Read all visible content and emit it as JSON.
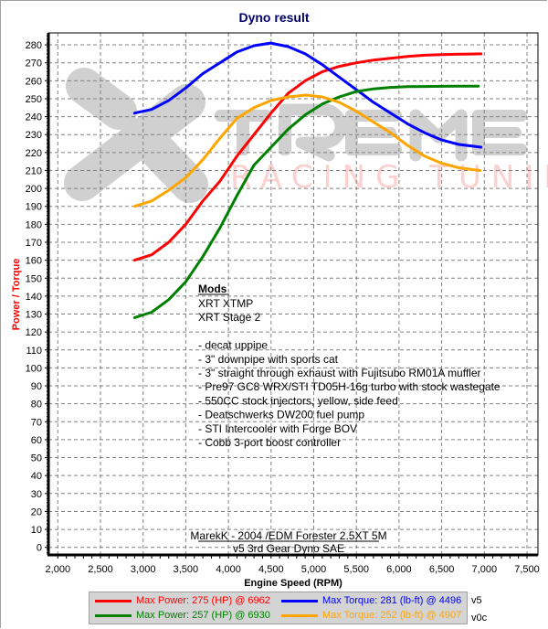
{
  "chart_data": {
    "type": "line",
    "title": "Dyno result",
    "xlabel": "Engine Speed (RPM)",
    "ylabel": "Power / Torque",
    "xlim": [
      1880,
      7620
    ],
    "ylim": [
      -5,
      290
    ],
    "x_ticks": [
      2000,
      2500,
      3000,
      3500,
      4000,
      4500,
      5000,
      5500,
      6000,
      6500,
      7000,
      7500
    ],
    "x_tick_labels": [
      "2,000",
      "2,500",
      "3,000",
      "3,500",
      "4,000",
      "4,500",
      "5,000",
      "5,500",
      "6,000",
      "6,500",
      "7,000",
      "7,500"
    ],
    "y_ticks": [
      0,
      10,
      20,
      30,
      40,
      50,
      60,
      70,
      80,
      90,
      100,
      110,
      120,
      130,
      140,
      150,
      160,
      170,
      180,
      190,
      200,
      210,
      220,
      230,
      240,
      250,
      260,
      270,
      280
    ],
    "grid": true,
    "legend_position": "bottom",
    "series": [
      {
        "name": "Max Power: 275 (HP) @ 6962",
        "run": "v5",
        "color": "#ff0000",
        "x": [
          2900,
          3100,
          3300,
          3500,
          3700,
          3900,
          4100,
          4300,
          4500,
          4700,
          4900,
          5100,
          5300,
          5500,
          5700,
          5900,
          6100,
          6300,
          6500,
          6700,
          6962
        ],
        "y": [
          160,
          163,
          170,
          180,
          193,
          204,
          218,
          230,
          242,
          253,
          260,
          265,
          268,
          270,
          271.5,
          272.5,
          273.5,
          274.2,
          274.6,
          274.8,
          275
        ]
      },
      {
        "name": "Max Torque: 281 (lb-ft) @ 4496",
        "run": "v5",
        "color": "#0000ff",
        "x": [
          2900,
          3100,
          3300,
          3500,
          3700,
          3900,
          4100,
          4300,
          4496,
          4700,
          4900,
          5100,
          5300,
          5500,
          5700,
          5900,
          6100,
          6300,
          6500,
          6700,
          6962
        ],
        "y": [
          242,
          244,
          249,
          256,
          264,
          270,
          276,
          279.5,
          281,
          279,
          275,
          269,
          262,
          255,
          248,
          242,
          236,
          231,
          227,
          224.5,
          223
        ]
      },
      {
        "name": "Max Power: 257 (HP) @ 6930",
        "run": "v0c",
        "color": "#008000",
        "x": [
          2900,
          3100,
          3300,
          3500,
          3700,
          3900,
          4100,
          4300,
          4500,
          4700,
          4900,
          5100,
          5300,
          5500,
          5700,
          5900,
          6100,
          6300,
          6500,
          6700,
          6930
        ],
        "y": [
          128,
          131,
          138,
          148,
          162,
          178,
          196,
          213,
          223,
          233,
          241,
          247,
          251,
          254,
          255.5,
          256.3,
          256.7,
          256.8,
          256.9,
          257,
          257
        ]
      },
      {
        "name": "Max Torque: 252 (lb-ft) @ 4907",
        "run": "v0c",
        "color": "#ffa500",
        "x": [
          2900,
          3100,
          3300,
          3500,
          3700,
          3900,
          4100,
          4300,
          4500,
          4700,
          4907,
          5100,
          5300,
          5500,
          5700,
          5900,
          6100,
          6300,
          6500,
          6700,
          6950
        ],
        "y": [
          190,
          193,
          199,
          206,
          216,
          228,
          239,
          245,
          249,
          251,
          252,
          251,
          248,
          243,
          237,
          231,
          224,
          218,
          214,
          211.5,
          210
        ]
      }
    ],
    "annotations": {
      "mods_heading": "Mods",
      "mods_lines": [
        "XRT XTMP",
        "XRT Stage 2",
        "",
        "- decat uppipe",
        "- 3\" downpipe with sports cat",
        "- 3\" straight through exhaust with Fujitsubo RM01A muffler",
        "- Pre97 GC8 WRX/STI TD05H-16g turbo with stock wastegate",
        "- 550CC stock injectors, yellow, side feed",
        "- Deatschwerks DW200 fuel pump",
        "- STI Intercooler with Forge BOV",
        "- Cobb 3-port boost controller"
      ],
      "caption_line1": "MarekK - 2004 /EDM Forester 2.5XT 5M",
      "caption_line2": "v5 3rd Gear Dyno SAE"
    },
    "watermark": {
      "word": "TREME",
      "subtitle": "RACING TUNING"
    }
  },
  "legend": {
    "items": [
      {
        "label": "Max Power: 275 (HP) @ 6962",
        "color": "#ff0000"
      },
      {
        "label": "Max Torque: 281 (lb-ft) @ 4496",
        "color": "#0000ff"
      },
      {
        "label": "Max Power: 257 (HP) @ 6930",
        "color": "#008000"
      },
      {
        "label": "Max Torque: 252 (lb-ft) @ 4907",
        "color": "#ffa500"
      }
    ],
    "runs": [
      "v5",
      "v0c"
    ]
  }
}
